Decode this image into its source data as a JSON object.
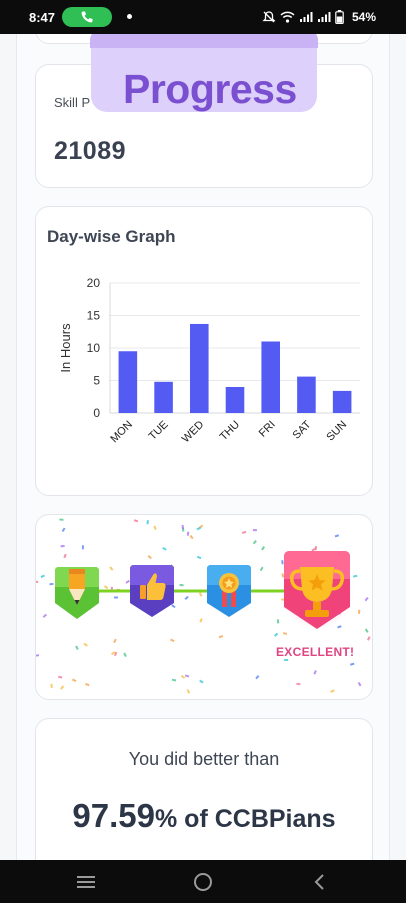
{
  "status_bar": {
    "time": "8:47",
    "battery": "54%",
    "icons": [
      "call-active-icon",
      "notification-dot",
      "mute-icon",
      "wifi-icon",
      "signal-icon",
      "signal-icon",
      "battery-icon"
    ]
  },
  "progress_badge": {
    "text": "Progress"
  },
  "skill_card": {
    "label": "Skill P",
    "value": "21089"
  },
  "graph_card": {
    "title": "Day-wise Graph"
  },
  "chart_data": {
    "type": "bar",
    "title": "Day-wise Graph",
    "xlabel": "",
    "ylabel": "In Hours",
    "categories": [
      "MON",
      "TUE",
      "WED",
      "THU",
      "FRI",
      "SAT",
      "SUN"
    ],
    "values": [
      9.5,
      4.8,
      13.7,
      4.0,
      11.0,
      5.6,
      3.4
    ],
    "ylim": [
      0,
      20
    ],
    "yticks": [
      0,
      5,
      10,
      15,
      20
    ],
    "grid": true,
    "bar_color": "#535bf2"
  },
  "achievements": {
    "icons": [
      "pencil-badge-icon",
      "thumbs-up-badge-icon",
      "medal-badge-icon",
      "trophy-badge-icon"
    ],
    "level_label": "EXCELLENT!"
  },
  "rank_card": {
    "subtitle": "You did better than",
    "percent": "97.59",
    "suffix": "% of CCBPians"
  },
  "colors": {
    "accent_purple": "#7a4fd0",
    "badge_bg": "#ddd0fa",
    "bar": "#535bf2",
    "excellent": "#e0457f",
    "progress_line": "#7ed321"
  },
  "nav_bar": {
    "icons": [
      "menu-icon",
      "home-icon",
      "back-icon"
    ]
  }
}
